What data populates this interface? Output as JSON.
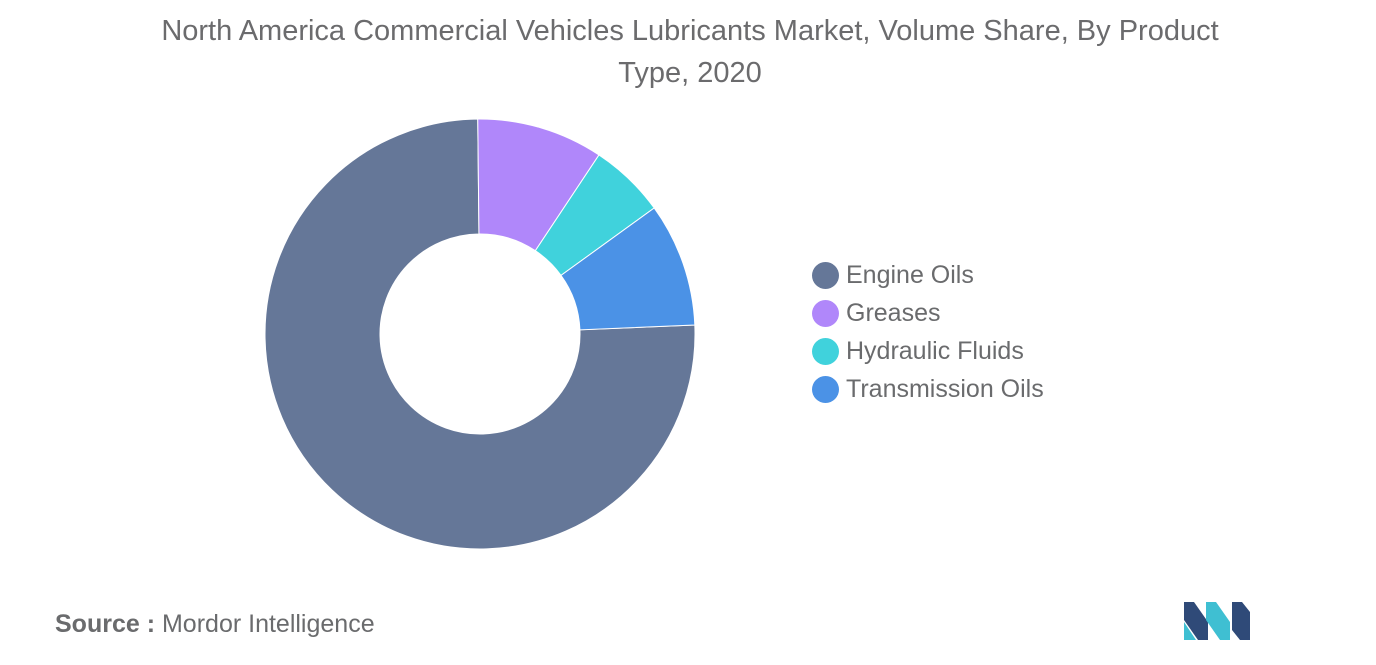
{
  "title": "North America Commercial Vehicles Lubricants Market, Volume Share, By Product Type, 2020",
  "chart_data": {
    "type": "pie",
    "donut": true,
    "categories": [
      "Engine Oils",
      "Greases",
      "Hydraulic Fluids",
      "Transmission Oils"
    ],
    "values": [
      75.5,
      9.5,
      5.7,
      9.3
    ],
    "unit": "%",
    "colors": [
      "#657798",
      "#b087fa",
      "#40d2dc",
      "#4b92e6"
    ],
    "legend_position": "right"
  },
  "legend": [
    {
      "label": "Engine Oils",
      "color": "#657798"
    },
    {
      "label": "Greases",
      "color": "#b087fa"
    },
    {
      "label": "Hydraulic Fluids",
      "color": "#40d2dc"
    },
    {
      "label": "Transmission Oils",
      "color": "#4b92e6"
    }
  ],
  "source": {
    "prefix": "Source :",
    "text": "Mordor Intelligence"
  },
  "logo": {
    "icon": "mordor-intelligence-logo",
    "colors": [
      "#2f4a78",
      "#3fbfd2"
    ]
  }
}
